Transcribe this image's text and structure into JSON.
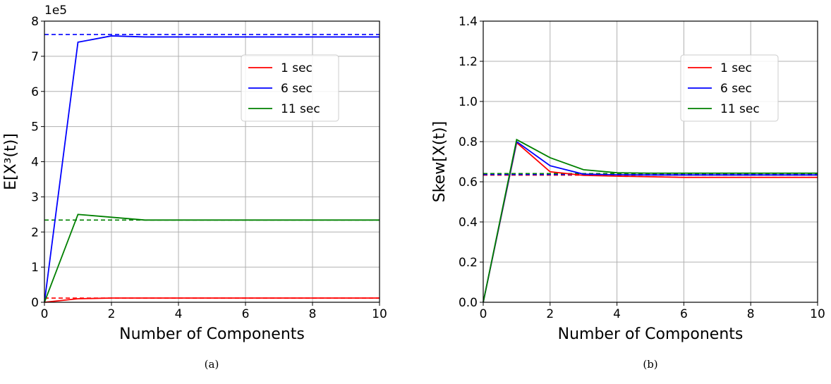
{
  "chart_data": [
    {
      "type": "line",
      "caption": "(a)",
      "ylabel": "E[X³(t)]",
      "xlabel": "Number of Components",
      "offset_text": "1e5",
      "xlim": [
        0,
        10
      ],
      "ylim": [
        0,
        8
      ],
      "xticks": [
        0,
        2,
        4,
        6,
        8,
        10
      ],
      "yticks": [
        0,
        1,
        2,
        3,
        4,
        5,
        6,
        7,
        8
      ],
      "grid": true,
      "legend_position": "upper-right",
      "x": [
        0,
        1,
        2,
        3,
        4,
        5,
        6,
        7,
        8,
        9,
        10
      ],
      "series": [
        {
          "name": "1 sec",
          "color": "#ff0000",
          "values": [
            0,
            0.1,
            0.12,
            0.12,
            0.12,
            0.12,
            0.12,
            0.12,
            0.12,
            0.12,
            0.12
          ],
          "reference": 0.12
        },
        {
          "name": "6 sec",
          "color": "#0000ff",
          "values": [
            0,
            7.4,
            7.58,
            7.55,
            7.55,
            7.55,
            7.55,
            7.55,
            7.55,
            7.55,
            7.55
          ],
          "reference": 7.62
        },
        {
          "name": "11 sec",
          "color": "#008000",
          "values": [
            0,
            2.5,
            2.42,
            2.34,
            2.34,
            2.34,
            2.34,
            2.34,
            2.34,
            2.34,
            2.34
          ],
          "reference": 2.34
        }
      ]
    },
    {
      "type": "line",
      "caption": "(b)",
      "ylabel": "Skew[X(t)]",
      "xlabel": "Number of Components",
      "xlim": [
        0,
        10
      ],
      "ylim": [
        0,
        1.4
      ],
      "xticks": [
        0,
        2,
        4,
        6,
        8,
        10
      ],
      "yticks": [
        0.0,
        0.2,
        0.4,
        0.6,
        0.8,
        1.0,
        1.2,
        1.4
      ],
      "grid": true,
      "legend_position": "upper-right",
      "x": [
        0,
        1,
        2,
        3,
        4,
        5,
        6,
        7,
        8,
        9,
        10
      ],
      "series": [
        {
          "name": "1 sec",
          "color": "#ff0000",
          "values": [
            0,
            0.795,
            0.65,
            0.632,
            0.628,
            0.625,
            0.622,
            0.622,
            0.622,
            0.622,
            0.622
          ],
          "reference": 0.633
        },
        {
          "name": "6 sec",
          "color": "#0000ff",
          "values": [
            0,
            0.8,
            0.68,
            0.638,
            0.635,
            0.634,
            0.634,
            0.634,
            0.634,
            0.634,
            0.634
          ],
          "reference": 0.636
        },
        {
          "name": "11 sec",
          "color": "#008000",
          "values": [
            0,
            0.81,
            0.72,
            0.66,
            0.645,
            0.643,
            0.643,
            0.643,
            0.643,
            0.643,
            0.643
          ],
          "reference": 0.641
        }
      ]
    }
  ]
}
